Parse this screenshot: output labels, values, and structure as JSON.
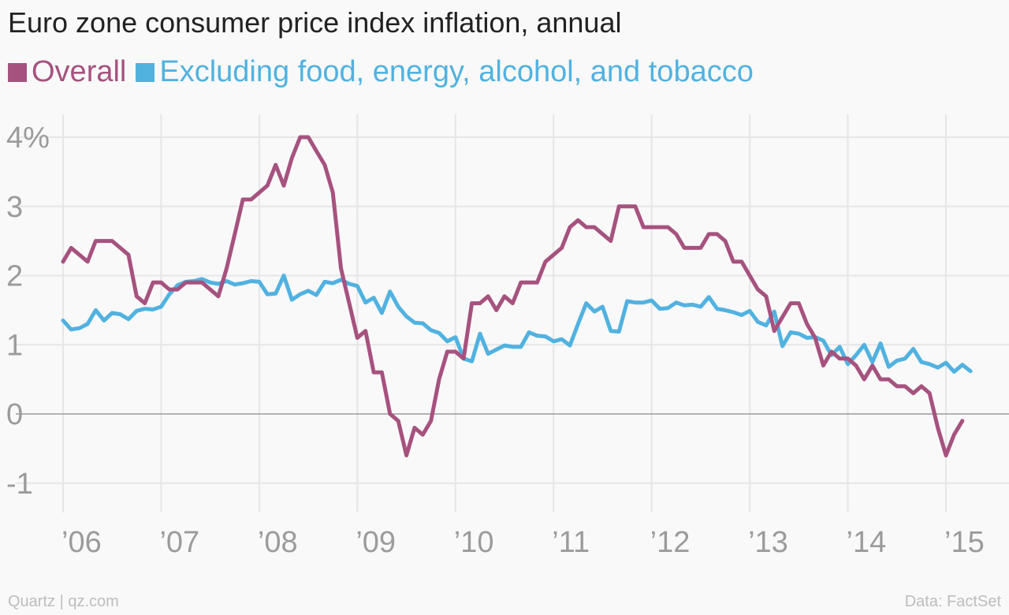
{
  "colors": {
    "overall": "#a6527f",
    "core": "#51b2e0",
    "grid": "#e6e6e6",
    "zero": "#9a9a9a",
    "tick": "#9b9b9b"
  },
  "footer": {
    "source_left": "Quartz | qz.com",
    "source_right": "Data: FactSet"
  },
  "chart_data": {
    "type": "line",
    "title": "Euro zone consumer price index inflation, annual",
    "xlabel": "",
    "ylabel": "",
    "ylim": [
      -1.45,
      4.4
    ],
    "xlim": [
      2005.6,
      2015.6
    ],
    "grid": true,
    "legend_position": "top-left",
    "y_ticks": [
      {
        "value": 4,
        "label": "4%"
      },
      {
        "value": 3,
        "label": "3"
      },
      {
        "value": 2,
        "label": "2"
      },
      {
        "value": 1,
        "label": "1"
      },
      {
        "value": 0,
        "label": "0"
      },
      {
        "value": -1,
        "label": "-1"
      }
    ],
    "x_ticks": [
      {
        "value": 2006,
        "label": "’06"
      },
      {
        "value": 2007,
        "label": "’07"
      },
      {
        "value": 2008,
        "label": "’08"
      },
      {
        "value": 2009,
        "label": "’09"
      },
      {
        "value": 2010,
        "label": "’10"
      },
      {
        "value": 2011,
        "label": "’11"
      },
      {
        "value": 2012,
        "label": "’12"
      },
      {
        "value": 2013,
        "label": "’13"
      },
      {
        "value": 2014,
        "label": "’14"
      },
      {
        "value": 2015,
        "label": "’15"
      }
    ],
    "series": [
      {
        "name": "Overall",
        "color": "#a6527f",
        "points": [
          [
            2006.0,
            2.2
          ],
          [
            2006.083,
            2.4
          ],
          [
            2006.167,
            2.3
          ],
          [
            2006.25,
            2.2
          ],
          [
            2006.333,
            2.5
          ],
          [
            2006.417,
            2.5
          ],
          [
            2006.5,
            2.5
          ],
          [
            2006.583,
            2.4
          ],
          [
            2006.667,
            2.3
          ],
          [
            2006.75,
            1.7
          ],
          [
            2006.833,
            1.6
          ],
          [
            2006.917,
            1.9
          ],
          [
            2007.0,
            1.9
          ],
          [
            2007.083,
            1.8
          ],
          [
            2007.167,
            1.8
          ],
          [
            2007.25,
            1.9
          ],
          [
            2007.333,
            1.9
          ],
          [
            2007.417,
            1.9
          ],
          [
            2007.5,
            1.8
          ],
          [
            2007.583,
            1.7
          ],
          [
            2007.667,
            2.1
          ],
          [
            2007.75,
            2.6
          ],
          [
            2007.833,
            3.1
          ],
          [
            2007.917,
            3.1
          ],
          [
            2008.0,
            3.2
          ],
          [
            2008.083,
            3.3
          ],
          [
            2008.167,
            3.6
          ],
          [
            2008.25,
            3.3
          ],
          [
            2008.333,
            3.7
          ],
          [
            2008.417,
            4.0
          ],
          [
            2008.5,
            4.0
          ],
          [
            2008.583,
            3.8
          ],
          [
            2008.667,
            3.6
          ],
          [
            2008.75,
            3.2
          ],
          [
            2008.833,
            2.1
          ],
          [
            2008.917,
            1.6
          ],
          [
            2009.0,
            1.1
          ],
          [
            2009.083,
            1.2
          ],
          [
            2009.167,
            0.6
          ],
          [
            2009.25,
            0.6
          ],
          [
            2009.333,
            0.0
          ],
          [
            2009.417,
            -0.1
          ],
          [
            2009.5,
            -0.6
          ],
          [
            2009.583,
            -0.2
          ],
          [
            2009.667,
            -0.3
          ],
          [
            2009.75,
            -0.1
          ],
          [
            2009.833,
            0.5
          ],
          [
            2009.917,
            0.9
          ],
          [
            2010.0,
            0.9
          ],
          [
            2010.083,
            0.8
          ],
          [
            2010.167,
            1.6
          ],
          [
            2010.25,
            1.6
          ],
          [
            2010.333,
            1.7
          ],
          [
            2010.417,
            1.5
          ],
          [
            2010.5,
            1.7
          ],
          [
            2010.583,
            1.6
          ],
          [
            2010.667,
            1.9
          ],
          [
            2010.75,
            1.9
          ],
          [
            2010.833,
            1.9
          ],
          [
            2010.917,
            2.2
          ],
          [
            2011.0,
            2.3
          ],
          [
            2011.083,
            2.4
          ],
          [
            2011.167,
            2.7
          ],
          [
            2011.25,
            2.8
          ],
          [
            2011.333,
            2.7
          ],
          [
            2011.417,
            2.7
          ],
          [
            2011.5,
            2.6
          ],
          [
            2011.583,
            2.5
          ],
          [
            2011.667,
            3.0
          ],
          [
            2011.75,
            3.0
          ],
          [
            2011.833,
            3.0
          ],
          [
            2011.917,
            2.7
          ],
          [
            2012.0,
            2.7
          ],
          [
            2012.083,
            2.7
          ],
          [
            2012.167,
            2.7
          ],
          [
            2012.25,
            2.6
          ],
          [
            2012.333,
            2.4
          ],
          [
            2012.417,
            2.4
          ],
          [
            2012.5,
            2.4
          ],
          [
            2012.583,
            2.6
          ],
          [
            2012.667,
            2.6
          ],
          [
            2012.75,
            2.5
          ],
          [
            2012.833,
            2.2
          ],
          [
            2012.917,
            2.2
          ],
          [
            2013.0,
            2.0
          ],
          [
            2013.083,
            1.8
          ],
          [
            2013.167,
            1.7
          ],
          [
            2013.25,
            1.2
          ],
          [
            2013.333,
            1.4
          ],
          [
            2013.417,
            1.6
          ],
          [
            2013.5,
            1.6
          ],
          [
            2013.583,
            1.3
          ],
          [
            2013.667,
            1.1
          ],
          [
            2013.75,
            0.7
          ],
          [
            2013.833,
            0.9
          ],
          [
            2013.917,
            0.8
          ],
          [
            2014.0,
            0.8
          ],
          [
            2014.083,
            0.7
          ],
          [
            2014.167,
            0.5
          ],
          [
            2014.25,
            0.7
          ],
          [
            2014.333,
            0.5
          ],
          [
            2014.417,
            0.5
          ],
          [
            2014.5,
            0.4
          ],
          [
            2014.583,
            0.4
          ],
          [
            2014.667,
            0.3
          ],
          [
            2014.75,
            0.4
          ],
          [
            2014.833,
            0.3
          ],
          [
            2014.917,
            -0.2
          ],
          [
            2015.0,
            -0.6
          ],
          [
            2015.083,
            -0.3
          ],
          [
            2015.167,
            -0.1
          ]
        ]
      },
      {
        "name": "Excluding food, energy, alcohol, and tobacco",
        "color": "#51b2e0",
        "points": [
          [
            2006.0,
            1.35
          ],
          [
            2006.083,
            1.22
          ],
          [
            2006.167,
            1.24
          ],
          [
            2006.25,
            1.3
          ],
          [
            2006.333,
            1.5
          ],
          [
            2006.417,
            1.35
          ],
          [
            2006.5,
            1.46
          ],
          [
            2006.583,
            1.44
          ],
          [
            2006.667,
            1.37
          ],
          [
            2006.75,
            1.49
          ],
          [
            2006.833,
            1.52
          ],
          [
            2006.917,
            1.51
          ],
          [
            2007.0,
            1.55
          ],
          [
            2007.083,
            1.73
          ],
          [
            2007.167,
            1.86
          ],
          [
            2007.25,
            1.91
          ],
          [
            2007.333,
            1.92
          ],
          [
            2007.417,
            1.95
          ],
          [
            2007.5,
            1.9
          ],
          [
            2007.583,
            1.88
          ],
          [
            2007.667,
            1.92
          ],
          [
            2007.75,
            1.87
          ],
          [
            2007.833,
            1.89
          ],
          [
            2007.917,
            1.92
          ],
          [
            2008.0,
            1.91
          ],
          [
            2008.083,
            1.73
          ],
          [
            2008.167,
            1.74
          ],
          [
            2008.25,
            2.0
          ],
          [
            2008.333,
            1.65
          ],
          [
            2008.417,
            1.73
          ],
          [
            2008.5,
            1.78
          ],
          [
            2008.583,
            1.72
          ],
          [
            2008.667,
            1.91
          ],
          [
            2008.75,
            1.89
          ],
          [
            2008.833,
            1.94
          ],
          [
            2008.917,
            1.88
          ],
          [
            2009.0,
            1.85
          ],
          [
            2009.083,
            1.61
          ],
          [
            2009.167,
            1.68
          ],
          [
            2009.25,
            1.46
          ],
          [
            2009.333,
            1.77
          ],
          [
            2009.417,
            1.55
          ],
          [
            2009.5,
            1.41
          ],
          [
            2009.583,
            1.32
          ],
          [
            2009.667,
            1.31
          ],
          [
            2009.75,
            1.21
          ],
          [
            2009.833,
            1.17
          ],
          [
            2009.917,
            1.05
          ],
          [
            2010.0,
            1.11
          ],
          [
            2010.083,
            0.8
          ],
          [
            2010.167,
            0.76
          ],
          [
            2010.25,
            1.16
          ],
          [
            2010.333,
            0.87
          ],
          [
            2010.417,
            0.93
          ],
          [
            2010.5,
            0.99
          ],
          [
            2010.583,
            0.97
          ],
          [
            2010.667,
            0.97
          ],
          [
            2010.75,
            1.18
          ],
          [
            2010.833,
            1.13
          ],
          [
            2010.917,
            1.12
          ],
          [
            2011.0,
            1.05
          ],
          [
            2011.083,
            1.08
          ],
          [
            2011.167,
            0.99
          ],
          [
            2011.25,
            1.3
          ],
          [
            2011.333,
            1.6
          ],
          [
            2011.417,
            1.48
          ],
          [
            2011.5,
            1.55
          ],
          [
            2011.583,
            1.2
          ],
          [
            2011.667,
            1.19
          ],
          [
            2011.75,
            1.63
          ],
          [
            2011.833,
            1.61
          ],
          [
            2011.917,
            1.61
          ],
          [
            2012.0,
            1.64
          ],
          [
            2012.083,
            1.52
          ],
          [
            2012.167,
            1.53
          ],
          [
            2012.25,
            1.61
          ],
          [
            2012.333,
            1.57
          ],
          [
            2012.417,
            1.58
          ],
          [
            2012.5,
            1.55
          ],
          [
            2012.583,
            1.69
          ],
          [
            2012.667,
            1.52
          ],
          [
            2012.75,
            1.5
          ],
          [
            2012.833,
            1.47
          ],
          [
            2012.917,
            1.43
          ],
          [
            2013.0,
            1.49
          ],
          [
            2013.083,
            1.33
          ],
          [
            2013.167,
            1.28
          ],
          [
            2013.25,
            1.48
          ],
          [
            2013.333,
            0.98
          ],
          [
            2013.417,
            1.18
          ],
          [
            2013.5,
            1.16
          ],
          [
            2013.583,
            1.1
          ],
          [
            2013.667,
            1.11
          ],
          [
            2013.75,
            1.06
          ],
          [
            2013.833,
            0.85
          ],
          [
            2013.917,
            0.97
          ],
          [
            2014.0,
            0.72
          ],
          [
            2014.083,
            0.85
          ],
          [
            2014.167,
            1.0
          ],
          [
            2014.25,
            0.75
          ],
          [
            2014.333,
            1.02
          ],
          [
            2014.417,
            0.68
          ],
          [
            2014.5,
            0.77
          ],
          [
            2014.583,
            0.8
          ],
          [
            2014.667,
            0.94
          ],
          [
            2014.75,
            0.75
          ],
          [
            2014.833,
            0.72
          ],
          [
            2014.917,
            0.67
          ],
          [
            2015.0,
            0.74
          ],
          [
            2015.083,
            0.61
          ],
          [
            2015.167,
            0.71
          ],
          [
            2015.25,
            0.62
          ]
        ]
      }
    ]
  }
}
